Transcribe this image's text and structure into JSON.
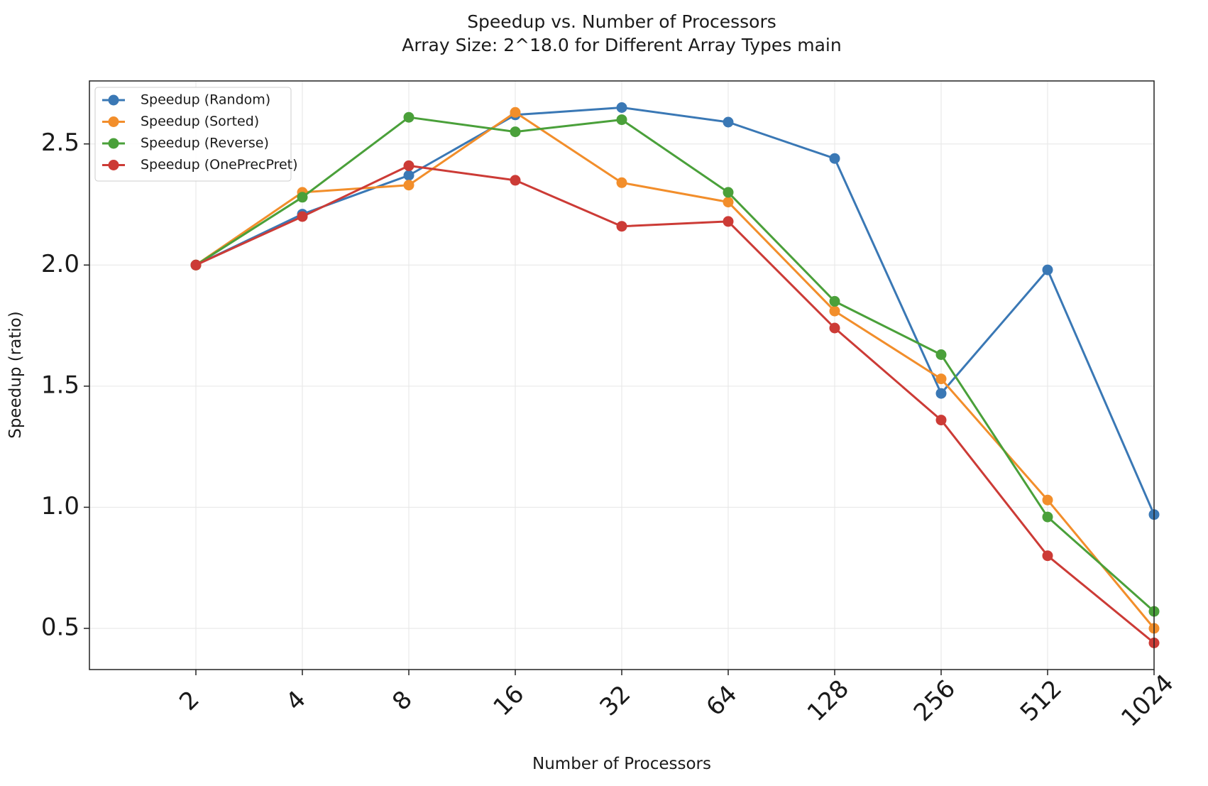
{
  "chart_data": {
    "type": "line",
    "title": "Speedup vs. Number of Processors",
    "subtitle": "Array Size: 2^18.0 for Different Array Types main",
    "xlabel": "Number of Processors",
    "ylabel": "Speedup (ratio)",
    "x_scale": "log2",
    "x": [
      2,
      4,
      8,
      16,
      32,
      64,
      128,
      256,
      512,
      1024
    ],
    "x_tick_labels": [
      "2",
      "4",
      "8",
      "16",
      "32",
      "64",
      "128",
      "256",
      "512",
      "1024"
    ],
    "xlim": [
      1,
      1024
    ],
    "ylim": [
      0.33,
      2.76
    ],
    "y_ticks": [
      0.5,
      1.0,
      1.5,
      2.0,
      2.5
    ],
    "y_tick_labels": [
      "0.5",
      "1.0",
      "1.5",
      "2.0",
      "2.5"
    ],
    "grid": true,
    "legend_position": "top-left",
    "series": [
      {
        "name": "Speedup (Random)",
        "color": "#3a78b5",
        "values": [
          2.0,
          2.21,
          2.37,
          2.62,
          2.65,
          2.59,
          2.44,
          1.47,
          1.98,
          0.97
        ]
      },
      {
        "name": "Speedup (Sorted)",
        "color": "#f28e2b",
        "values": [
          2.0,
          2.3,
          2.33,
          2.63,
          2.34,
          2.26,
          1.81,
          1.53,
          1.03,
          0.5
        ]
      },
      {
        "name": "Speedup (Reverse)",
        "color": "#4aa03a",
        "values": [
          2.0,
          2.28,
          2.61,
          2.55,
          2.6,
          2.3,
          1.85,
          1.63,
          0.96,
          0.57
        ]
      },
      {
        "name": "Speedup (OnePrecPret)",
        "color": "#cc3b36",
        "values": [
          2.0,
          2.2,
          2.41,
          2.35,
          2.16,
          2.18,
          1.74,
          1.36,
          0.8,
          0.44
        ]
      }
    ]
  }
}
